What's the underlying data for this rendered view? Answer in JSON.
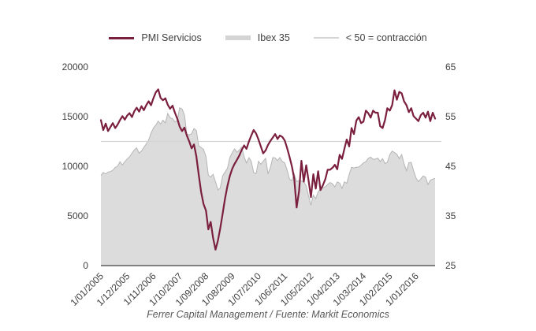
{
  "legend": {
    "items": [
      {
        "label": "PMI Servicios",
        "swatch": "maroon-line"
      },
      {
        "label": "Ibex 35",
        "swatch": "gray-thick-line"
      },
      {
        "label": "< 50 = contracción",
        "swatch": "light-gray-line"
      }
    ]
  },
  "caption": "Ferrer Capital Management / Fuente: Markit Economics",
  "colors": {
    "pmi_line": "#7b1f3f",
    "ibex_fill": "#dcdcdc",
    "ibex_outline": "#b5b5b5",
    "reference_line": "#d4d4d4",
    "axis_line": "#7f7f7f",
    "tick_text": "#404040"
  },
  "chart_data": {
    "type": "line",
    "title": "",
    "period": {
      "start": "1/01/2005",
      "frequency": "monthly"
    },
    "x_tick_labels": [
      "1/01/2005",
      "1/12/2005",
      "1/11/2006",
      "1/10/2007",
      "1/09/2008",
      "1/08/2009",
      "1/07/2010",
      "1/06/2011",
      "1/05/2012",
      "1/04/2013",
      "1/03/2014",
      "1/02/2015",
      "1/01/2016"
    ],
    "x_tick_month_indices": [
      0,
      11,
      22,
      33,
      44,
      55,
      66,
      77,
      88,
      99,
      110,
      121,
      132
    ],
    "left_axis": {
      "series": "Ibex 35",
      "ticks": [
        0,
        5000,
        10000,
        15000,
        20000
      ],
      "range": [
        0,
        20000
      ]
    },
    "right_axis": {
      "series": "PMI Servicios",
      "ticks": [
        25,
        35,
        45,
        55,
        65
      ],
      "range": [
        25,
        65
      ]
    },
    "reference_line": {
      "axis": "right",
      "value": 50,
      "label": "< 50 = contracción"
    },
    "legend_position": "top",
    "grid": false,
    "series": [
      {
        "name": "PMI Servicios",
        "type": "line",
        "axis": "right",
        "color": "#7b1f3f",
        "values": [
          54.3,
          52.3,
          53.6,
          52.1,
          52.9,
          53.7,
          52.7,
          53.4,
          54.3,
          55.1,
          54.4,
          55.2,
          55.7,
          54.9,
          56.1,
          56.8,
          56.0,
          57.1,
          56.3,
          57.3,
          58.1,
          57.3,
          58.7,
          59.9,
          60.5,
          58.8,
          58.3,
          58.7,
          57.4,
          56.6,
          57.2,
          55.8,
          54.6,
          53.0,
          52.1,
          52.8,
          51.2,
          50.0,
          48.6,
          49.4,
          47.0,
          43.2,
          39.8,
          37.4,
          36.1,
          32.3,
          33.8,
          30.6,
          28.2,
          30.0,
          32.5,
          35.5,
          38.5,
          41.0,
          43.0,
          44.5,
          45.5,
          46.3,
          47.2,
          48.3,
          49.2,
          48.5,
          50.0,
          51.2,
          52.3,
          51.6,
          50.4,
          49.0,
          47.6,
          48.2,
          49.3,
          50.1,
          50.8,
          51.5,
          50.5,
          51.2,
          50.9,
          50.2,
          48.7,
          46.9,
          45.0,
          42.5,
          36.7,
          40.0,
          46.1,
          41.9,
          45.2,
          42.1,
          38.8,
          43.4,
          40.5,
          44.0,
          40.2,
          41.2,
          42.4,
          44.3,
          44.3,
          44.7,
          45.3,
          44.4,
          47.3,
          46.5,
          48.5,
          50.4,
          49.0,
          52.7,
          51.5,
          54.2,
          54.9,
          53.7,
          54.0,
          56.2,
          55.7,
          54.8,
          56.2,
          55.8,
          55.8,
          53.1,
          52.7,
          54.3,
          56.7,
          56.2,
          57.3,
          60.3,
          58.4,
          60.0,
          59.7,
          58.1,
          57.3,
          55.9,
          56.7,
          55.1,
          54.6,
          54.1,
          55.3,
          55.8,
          54.8,
          56.0,
          54.1,
          55.8,
          54.6
        ]
      },
      {
        "name": "Ibex 35",
        "type": "area",
        "axis": "left",
        "color": "#dcdcdc",
        "outline": "#b5b5b5",
        "values": [
          9080,
          9371,
          9227,
          9421,
          9467,
          9608,
          9884,
          10022,
          10456,
          10144,
          10461,
          10734,
          10947,
          11318,
          11651,
          11854,
          11306,
          11548,
          11907,
          12251,
          12656,
          13327,
          13849,
          14147,
          14553,
          14248,
          14641,
          14375,
          15329,
          14892,
          14802,
          14479,
          14576,
          15890,
          15759,
          15182,
          13229,
          13170,
          13269,
          13798,
          13600,
          12046,
          11881,
          11707,
          10988,
          9116,
          8910,
          9196,
          8450,
          7621,
          7815,
          9038,
          9424,
          9787,
          10855,
          11365,
          11756,
          11415,
          11644,
          11940,
          10948,
          10333,
          10871,
          10492,
          9359,
          9263,
          10499,
          10187,
          10514,
          10812,
          9267,
          9859,
          10879,
          10850,
          10576,
          10879,
          10476,
          10359,
          9630,
          8718,
          8546,
          9233,
          8449,
          8566,
          8509,
          8465,
          8008,
          7011,
          6090,
          7102,
          6738,
          7420,
          7708,
          7842,
          7934,
          8167,
          8362,
          8230,
          7920,
          8419,
          8320,
          7763,
          8433,
          8290,
          9186,
          9907,
          9837,
          9916,
          9920,
          10114,
          10340,
          10459,
          10798,
          10923,
          10707,
          10728,
          10825,
          10477,
          10770,
          10279,
          10403,
          11178,
          11521,
          11385,
          11217,
          10769,
          11180,
          10259,
          9559,
          10360,
          10386,
          9544,
          8815,
          8461,
          8723,
          9025,
          8913,
          8163,
          8587,
          8716,
          8779
        ]
      }
    ]
  }
}
